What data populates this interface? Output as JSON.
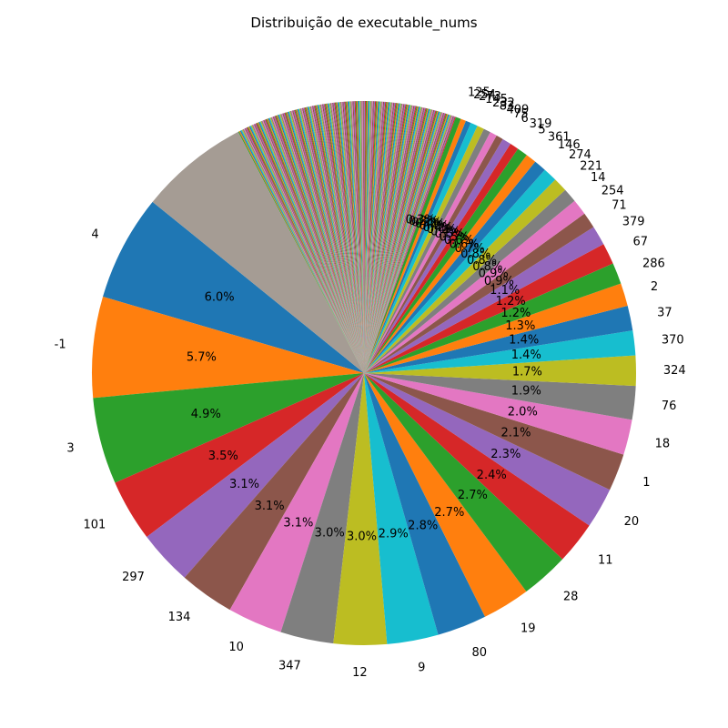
{
  "chart_data": {
    "type": "pie",
    "title": "Distribuição de executable_nums",
    "start_angle_deg": 90,
    "direction": "counterclockwise",
    "palette": [
      "#1f77b4",
      "#ff7f0e",
      "#2ca02c",
      "#d62728",
      "#9467bd",
      "#8c564b",
      "#e377c2",
      "#7f7f7f",
      "#bcbd22",
      "#17becf"
    ],
    "slices": [
      {
        "label": "4",
        "percent": 6.0
      },
      {
        "label": "-1",
        "percent": 5.7
      },
      {
        "label": "3",
        "percent": 4.9
      },
      {
        "label": "101",
        "percent": 3.5
      },
      {
        "label": "297",
        "percent": 3.1
      },
      {
        "label": "134",
        "percent": 3.1
      },
      {
        "label": "10",
        "percent": 3.1
      },
      {
        "label": "347",
        "percent": 3.0
      },
      {
        "label": "12",
        "percent": 3.0
      },
      {
        "label": "9",
        "percent": 2.9
      },
      {
        "label": "80",
        "percent": 2.8
      },
      {
        "label": "19",
        "percent": 2.7
      },
      {
        "label": "28",
        "percent": 2.7
      },
      {
        "label": "11",
        "percent": 2.4
      },
      {
        "label": "20",
        "percent": 2.3
      },
      {
        "label": "1",
        "percent": 2.1
      },
      {
        "label": "18",
        "percent": 2.0
      },
      {
        "label": "76",
        "percent": 1.9
      },
      {
        "label": "324",
        "percent": 1.7
      },
      {
        "label": "370",
        "percent": 1.4
      },
      {
        "label": "37",
        "percent": 1.4
      },
      {
        "label": "2",
        "percent": 1.3
      },
      {
        "label": "286",
        "percent": 1.2
      },
      {
        "label": "67",
        "percent": 1.2
      },
      {
        "label": "379",
        "percent": 1.1
      },
      {
        "label": "71",
        "percent": 0.9
      },
      {
        "label": "254",
        "percent": 0.9
      },
      {
        "label": "14",
        "percent": 0.8
      },
      {
        "label": "221",
        "percent": 0.8
      },
      {
        "label": "274",
        "percent": 0.8
      },
      {
        "label": "146",
        "percent": 0.7
      },
      {
        "label": "361",
        "percent": 0.6
      },
      {
        "label": "5",
        "percent": 0.6
      },
      {
        "label": "319",
        "percent": 0.5
      },
      {
        "label": "6",
        "percent": 0.5
      },
      {
        "label": "75",
        "percent": 0.4
      },
      {
        "label": "409",
        "percent": 0.4
      },
      {
        "label": "83",
        "percent": 0.4
      },
      {
        "label": "232",
        "percent": 0.4
      },
      {
        "label": "145",
        "percent": 0.4
      },
      {
        "label": "273",
        "percent": 0.3
      },
      {
        "label": "254",
        "percent": 0.3
      },
      {
        "label": "125",
        "percent": 0.3
      }
    ],
    "other_labelled_slices": 220,
    "other_percent_total": 12.5,
    "background_tail": {
      "percent": 6.2,
      "color": "#a59c94"
    }
  }
}
